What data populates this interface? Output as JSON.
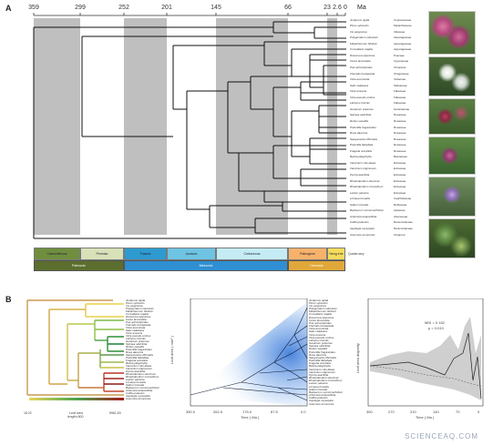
{
  "panels": {
    "a": "A",
    "b": "B"
  },
  "time_axis": {
    "ticks": [
      "359",
      "299",
      "252",
      "201",
      "145",
      "66",
      "23",
      "2.6",
      "0"
    ],
    "unit": "Ma"
  },
  "periods": [
    "Carboniferous",
    "Permian",
    "Triassic",
    "Jurassic",
    "Cretaceous",
    "Paleogene",
    "Neog ene",
    "Quaternary"
  ],
  "eras": [
    "Paleozoic",
    "Mesozoic",
    "Cenozoic"
  ],
  "taxa": [
    {
      "species": "Juniperus rigida",
      "family": "Cupressaceae"
    },
    {
      "species": "Pinus sylvestris",
      "family": "Melanthiaceae"
    },
    {
      "species": "Iris sanguinea",
      "family": "Iridaceae"
    },
    {
      "species": "Polygonatum odoratum",
      "family": "Asparagaceae"
    },
    {
      "species": "Maianthemum bifolium",
      "family": "Asparagaceae"
    },
    {
      "species": "Convallaria majalis",
      "family": "Asparagaceae"
    },
    {
      "species": "Dioscorea nipponica",
      "family": "Poaceae"
    },
    {
      "species": "Carex lanceolata",
      "family": "Cyperaceae"
    },
    {
      "species": "Poa sphondylodes",
      "family": "Ulmaceae"
    },
    {
      "species": "Clematis hexapetala",
      "family": "Onagraceae"
    },
    {
      "species": "Viola acuminata",
      "family": "Violaceae"
    },
    {
      "species": "Salix raddeana",
      "family": "Salicaceae"
    },
    {
      "species": "Vicia amoena",
      "family": "Fabaceae"
    },
    {
      "species": "Vicia pseudo-orobus",
      "family": "Fabaceae"
    },
    {
      "species": "Lathyrus humilis",
      "family": "Fabaceae"
    },
    {
      "species": "Geranium pratense",
      "family": "Geraniaceae"
    },
    {
      "species": "Spiraea salicifolia",
      "family": "Rosaceae"
    },
    {
      "species": "Rubus saxatilis",
      "family": "Rosaceae"
    },
    {
      "species": "Potentilla fragarioides",
      "family": "Rosaceae"
    },
    {
      "species": "Rosa davurica",
      "family": "Rosaceae"
    },
    {
      "species": "Sanguisorba officinalis",
      "family": "Rosaceae"
    },
    {
      "species": "Potentilla flabellata",
      "family": "Rosaceae"
    },
    {
      "species": "Fragaria orientalis",
      "family": "Rosaceae"
    },
    {
      "species": "Betula platyphylla",
      "family": "Betulaceae"
    },
    {
      "species": "Vaccinium vitis-idaea",
      "family": "Ericaceae"
    },
    {
      "species": "Vaccinium uliginosum",
      "family": "Ericaceae"
    },
    {
      "species": "Pyrola asarifolia",
      "family": "Ericaceae"
    },
    {
      "species": "Rhododendron dauricum",
      "family": "Ericaceae"
    },
    {
      "species": "Rhododendron micranthum",
      "family": "Ericaceae"
    },
    {
      "species": "Ledum palustre",
      "family": "Ericaceae"
    },
    {
      "species": "Linnaea borealis",
      "family": "Caprifoliaceae"
    },
    {
      "species": "Galium boreale",
      "family": "Rubiaceae"
    },
    {
      "species": "Bupleurum scorzonerifolium",
      "family": "Apiaceae"
    },
    {
      "species": "Artemisia tanacetifolia",
      "family": "Asteraceae"
    },
    {
      "species": "Caltha palustris",
      "family": "Ranunculaceae"
    },
    {
      "species": "Aquilegia oxysepala",
      "family": "Ranunculaceae"
    },
    {
      "species": "Anemone amurensis",
      "family": "Outgroup"
    }
  ],
  "panel_b": {
    "color_scale": {
      "min": "18.22",
      "max": "5961.83",
      "label": "Leaf area",
      "sublabel": "length=500"
    },
    "middle_axis": {
      "ticks": [
        "350.0",
        "262.5",
        "175.0",
        "87.5",
        "0.0"
      ],
      "xlabel": "Time ( Ma )",
      "ylabel": "Leaf area ( mm² )"
    },
    "right_axis": {
      "ticks": [
        "350",
        "270",
        "210",
        "140",
        "70",
        "0"
      ],
      "xlabel": "Time ( Ma )",
      "ylabel": "Leaf area disparity",
      "stat1": "MDI = 0.162",
      "stat2": "p = 0.010"
    }
  },
  "colors": {
    "carboniferous": "#6f8f3f",
    "permian": "#d8e1b8",
    "triassic": "#2e9ad0",
    "jurassic": "#6ec4e2",
    "cretaceous": "#c5ecf4",
    "paleogene": "#f6b26b",
    "neogene": "#f6dc5c",
    "paleozoic": "#5b6e2d",
    "mesozoic": "#2f8fd2",
    "cenozoic": "#e0a83a"
  },
  "watermark": "SCIENCEAQ.COM"
}
